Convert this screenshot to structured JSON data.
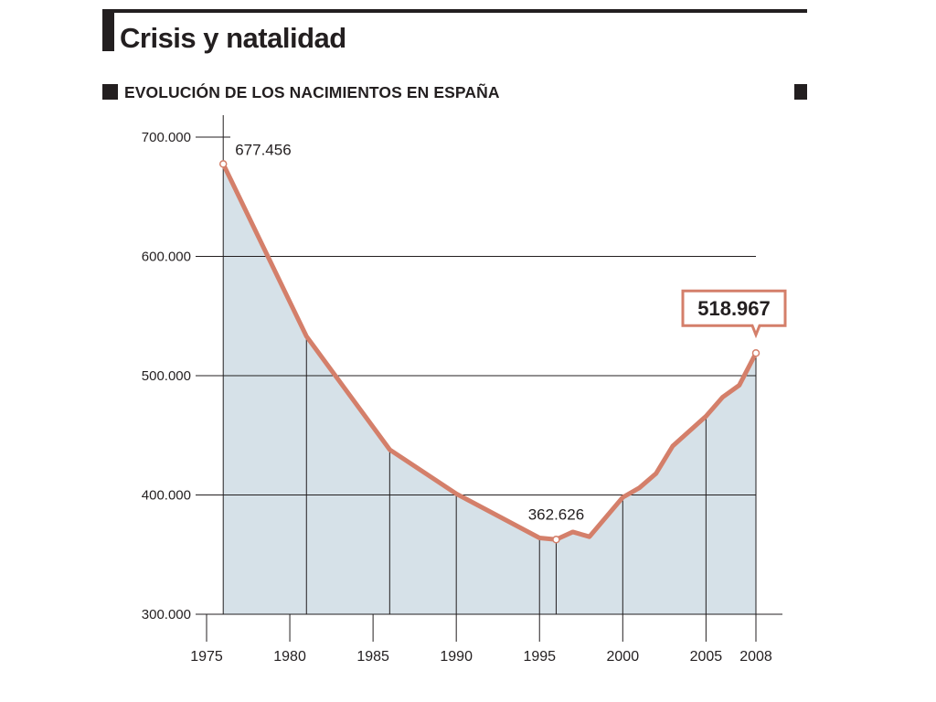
{
  "title": "Crisis y natalidad",
  "subtitle": "EVOLUCIÓN DE LOS NACIMIENTOS EN ESPAÑA",
  "colors": {
    "line": "#d47f6a",
    "area": "#d6e1e8",
    "text": "#231f20"
  },
  "chart_data": {
    "type": "area",
    "title": "EVOLUCIÓN DE LOS NACIMIENTOS EN ESPAÑA",
    "xlabel": "",
    "ylabel": "",
    "ylim": [
      300000,
      700000
    ],
    "xlim": [
      1975,
      2008
    ],
    "grid": true,
    "yticks": [
      300000,
      400000,
      500000,
      600000,
      700000
    ],
    "ytick_labels": [
      "300.000",
      "400.000",
      "500.000",
      "600.000",
      "700.000"
    ],
    "xticks": [
      1975,
      1980,
      1985,
      1990,
      1995,
      2000,
      2005,
      2008
    ],
    "xtick_labels": [
      "1975",
      "1980",
      "1985",
      "1990",
      "1995",
      "2000",
      "2005",
      "2008"
    ],
    "series": [
      {
        "x": [
          1976,
          1981,
          1986,
          1990,
          1995,
          1996,
          1997,
          1998,
          2000,
          2001,
          2002,
          2003,
          2005,
          2006,
          2007,
          2008
        ],
        "values": [
          677456,
          533000,
          438000,
          401000,
          364000,
          362626,
          369000,
          365000,
          398000,
          406000,
          418000,
          441000,
          466000,
          482000,
          492000,
          518967
        ]
      }
    ],
    "annotations": [
      {
        "x": 1976,
        "value": 677456,
        "label": "677.456"
      },
      {
        "x": 1996,
        "value": 362626,
        "label": "362.626"
      },
      {
        "x": 2008,
        "value": 518967,
        "label": "518.967",
        "boxed": true
      }
    ]
  }
}
